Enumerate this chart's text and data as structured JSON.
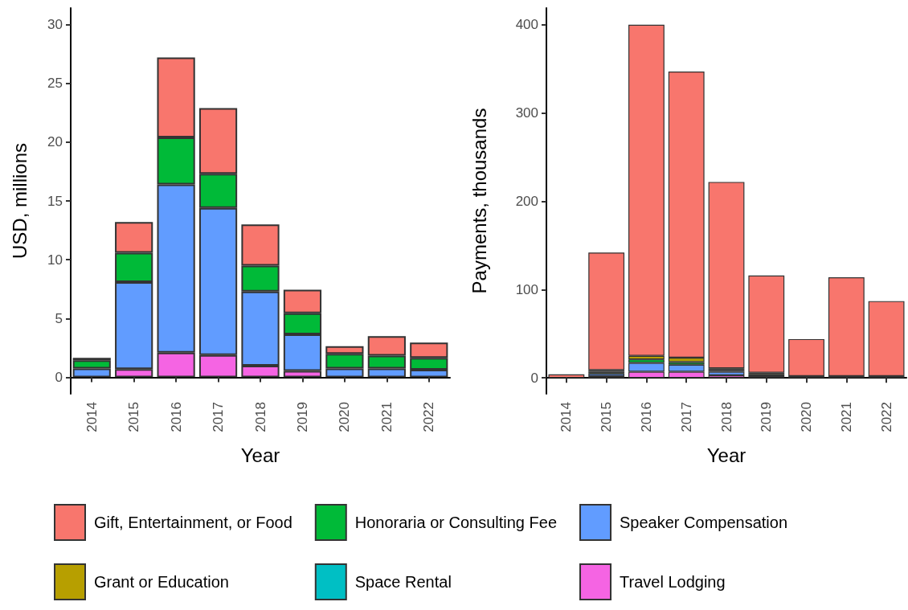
{
  "chart_data": [
    {
      "type": "bar",
      "stacked": true,
      "xlabel": "Year",
      "ylabel": "USD, millions",
      "categories": [
        "2014",
        "2015",
        "2016",
        "2017",
        "2018",
        "2019",
        "2020",
        "2021",
        "2022"
      ],
      "ylim": [
        -1.4,
        31.4
      ],
      "yticks": [
        0,
        5,
        10,
        15,
        20,
        25,
        30
      ],
      "grid": false,
      "legend": "bottom",
      "series": [
        {
          "name": "Travel Lodging",
          "color": "#f564e3",
          "values": [
            null,
            0.7,
            2.1,
            1.9,
            1.0,
            0.55,
            null,
            null,
            null
          ]
        },
        {
          "name": "Speaker Compensation",
          "color": "#619cff",
          "values": [
            0.75,
            7.4,
            14.3,
            12.5,
            6.3,
            3.1,
            0.75,
            0.75,
            0.65
          ]
        },
        {
          "name": "Space Rental",
          "color": "#00bfc4",
          "values": [
            null,
            null,
            null,
            null,
            null,
            null,
            null,
            null,
            null
          ]
        },
        {
          "name": "Honoraria or Consulting Fee",
          "color": "#00ba38",
          "values": [
            0.7,
            2.5,
            4.0,
            2.9,
            2.2,
            1.8,
            1.25,
            1.1,
            1.0
          ]
        },
        {
          "name": "Grant or Education",
          "color": "#b79f00",
          "values": [
            null,
            null,
            null,
            null,
            null,
            null,
            null,
            null,
            null
          ]
        },
        {
          "name": "Gift, Entertainment, or Food",
          "color": "#f8766d",
          "values": [
            0.2,
            2.6,
            6.8,
            5.6,
            3.5,
            2.0,
            0.65,
            1.65,
            1.3
          ]
        }
      ]
    },
    {
      "type": "bar",
      "stacked": true,
      "xlabel": "Year",
      "ylabel": "Payments, thousands",
      "categories": [
        "2014",
        "2015",
        "2016",
        "2017",
        "2018",
        "2019",
        "2020",
        "2021",
        "2022"
      ],
      "ylim": [
        -18,
        419
      ],
      "yticks": [
        0,
        100,
        200,
        300,
        400
      ],
      "grid": false,
      "series": [
        {
          "color": "#f564e3",
          "values": [
            null,
            2,
            7,
            7,
            3,
            null,
            null,
            null,
            null
          ]
        },
        {
          "color": "#619cff",
          "values": [
            null,
            3,
            10,
            8,
            4,
            2,
            null,
            null,
            null
          ]
        },
        {
          "color": "#00ba38",
          "values": [
            null,
            2,
            4,
            3,
            2,
            2,
            2,
            2,
            2
          ]
        },
        {
          "color": "#b79f00",
          "values": [
            null,
            2,
            4,
            5,
            2,
            2,
            null,
            null,
            null
          ]
        },
        {
          "color": "#f8766d",
          "values": [
            4,
            133,
            375,
            324,
            211,
            110,
            42,
            112,
            85
          ]
        }
      ]
    }
  ]
}
